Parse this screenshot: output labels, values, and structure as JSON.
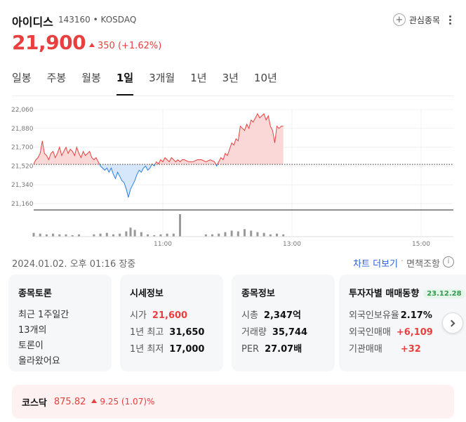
{
  "header": {
    "name": "아이디스",
    "code_market": "143160 • KOSDAQ",
    "interest_label": "관심종목",
    "icons": {
      "interest": "plus-circle-icon",
      "more": "more-vertical-icon"
    }
  },
  "quote": {
    "price": "21,900",
    "change": "350 (+1.62%)",
    "up_color": "#e8403f",
    "down_color": "#2b7de9"
  },
  "tabs": [
    "일봉",
    "주봉",
    "월봉",
    "1일",
    "3개월",
    "1년",
    "3년",
    "10년"
  ],
  "active_tab": "1일",
  "chart_data": {
    "type": "line",
    "title": "",
    "baseline": 21535,
    "ylim": [
      21160,
      22060
    ],
    "y_ticks": [
      "22,060",
      "21,880",
      "21,700",
      "21,520",
      "21,340",
      "21,160"
    ],
    "x_ticks": [
      "11:00",
      "13:00",
      "15:00"
    ],
    "x_range_minutes": [
      540,
      930
    ],
    "price_series": [
      [
        540,
        21540
      ],
      [
        542,
        21580
      ],
      [
        544,
        21600
      ],
      [
        546,
        21640
      ],
      [
        547,
        21700
      ],
      [
        548,
        21760
      ],
      [
        549,
        21700
      ],
      [
        550,
        21640
      ],
      [
        552,
        21620
      ],
      [
        554,
        21580
      ],
      [
        556,
        21640
      ],
      [
        558,
        21660
      ],
      [
        560,
        21600
      ],
      [
        562,
        21640
      ],
      [
        564,
        21700
      ],
      [
        566,
        21620
      ],
      [
        568,
        21660
      ],
      [
        570,
        21700
      ],
      [
        572,
        21640
      ],
      [
        574,
        21680
      ],
      [
        576,
        21660
      ],
      [
        578,
        21620
      ],
      [
        580,
        21700
      ],
      [
        582,
        21640
      ],
      [
        584,
        21600
      ],
      [
        586,
        21660
      ],
      [
        588,
        21620
      ],
      [
        590,
        21640
      ],
      [
        592,
        21660
      ],
      [
        594,
        21600
      ],
      [
        596,
        21580
      ],
      [
        598,
        21600
      ],
      [
        600,
        21560
      ],
      [
        602,
        21520
      ],
      [
        604,
        21500
      ],
      [
        606,
        21480
      ],
      [
        608,
        21500
      ],
      [
        610,
        21460
      ],
      [
        612,
        21500
      ],
      [
        614,
        21440
      ],
      [
        616,
        21400
      ],
      [
        618,
        21460
      ],
      [
        620,
        21420
      ],
      [
        622,
        21380
      ],
      [
        624,
        21360
      ],
      [
        626,
        21300
      ],
      [
        628,
        21220
      ],
      [
        630,
        21300
      ],
      [
        632,
        21340
      ],
      [
        634,
        21380
      ],
      [
        636,
        21440
      ],
      [
        638,
        21480
      ],
      [
        640,
        21460
      ],
      [
        642,
        21500
      ],
      [
        644,
        21520
      ],
      [
        646,
        21480
      ],
      [
        648,
        21500
      ],
      [
        650,
        21540
      ],
      [
        652,
        21520
      ],
      [
        654,
        21560
      ],
      [
        656,
        21540
      ],
      [
        658,
        21580
      ],
      [
        660,
        21560
      ],
      [
        662,
        21600
      ],
      [
        664,
        21580
      ],
      [
        666,
        21560
      ],
      [
        668,
        21600
      ],
      [
        670,
        21580
      ],
      [
        672,
        21560
      ],
      [
        674,
        21580
      ],
      [
        676,
        21560
      ],
      [
        678,
        21580
      ],
      [
        680,
        21580
      ],
      [
        684,
        21560
      ],
      [
        688,
        21560
      ],
      [
        692,
        21580
      ],
      [
        696,
        21580
      ],
      [
        700,
        21560
      ],
      [
        704,
        21580
      ],
      [
        708,
        21560
      ],
      [
        710,
        21520
      ],
      [
        712,
        21560
      ],
      [
        714,
        21600
      ],
      [
        716,
        21580
      ],
      [
        718,
        21640
      ],
      [
        720,
        21620
      ],
      [
        722,
        21680
      ],
      [
        724,
        21740
      ],
      [
        726,
        21720
      ],
      [
        728,
        21780
      ],
      [
        730,
        21760
      ],
      [
        732,
        21900
      ],
      [
        734,
        21880
      ],
      [
        736,
        21860
      ],
      [
        738,
        21920
      ],
      [
        740,
        21880
      ],
      [
        742,
        21960
      ],
      [
        744,
        21940
      ],
      [
        746,
        21980
      ],
      [
        748,
        22020
      ],
      [
        750,
        21980
      ],
      [
        752,
        22000
      ],
      [
        754,
        22020
      ],
      [
        756,
        21960
      ],
      [
        758,
        22000
      ],
      [
        760,
        21900
      ],
      [
        762,
        21860
      ],
      [
        764,
        21740
      ],
      [
        766,
        21900
      ],
      [
        768,
        21880
      ],
      [
        770,
        21900
      ],
      [
        772,
        21900
      ]
    ],
    "volume_ticks_minutes": [
      540,
      546,
      552,
      558,
      564,
      570,
      576,
      582,
      596,
      602,
      608,
      614,
      620,
      626,
      630,
      634,
      640,
      646,
      652,
      658,
      664,
      670,
      676,
      700,
      706,
      712,
      718,
      724,
      730,
      736,
      742,
      748,
      754,
      760,
      766,
      772
    ],
    "volume_values": [
      5,
      4,
      3,
      4,
      3,
      3,
      2,
      3,
      3,
      4,
      5,
      3,
      4,
      7,
      12,
      9,
      6,
      3,
      2,
      3,
      4,
      4,
      30,
      3,
      3,
      4,
      6,
      8,
      7,
      10,
      8,
      6,
      5,
      3,
      4,
      3
    ]
  },
  "info_bar": {
    "datetime": "2024.01.02. 오후 01:16 장중",
    "more_chart": "차트 더보기",
    "disclaimer": "면책조항",
    "info_icon_glyph": "i"
  },
  "cards": {
    "discussion": {
      "title": "종목토론",
      "lines": [
        "최근 1주일간",
        "13개의",
        "토론이",
        "올라왔어요"
      ]
    },
    "market": {
      "title": "시세정보",
      "rows": [
        {
          "k": "시가",
          "v": "21,600"
        },
        {
          "k": "1년 최고",
          "v": "31,650"
        },
        {
          "k": "1년 최저",
          "v": "17,000"
        }
      ]
    },
    "stock": {
      "title": "종목정보",
      "rows": [
        {
          "k": "시총",
          "v": "2,347억"
        },
        {
          "k": "거래량",
          "v": "35,744"
        },
        {
          "k": "PER",
          "v": "27.07배"
        }
      ]
    },
    "investor": {
      "title": "투자자별 매매동향",
      "badge": "23.12.28",
      "rows": [
        {
          "k": "외국인보유율",
          "v": "2.17%"
        },
        {
          "k": "외국인매매",
          "v": "+6,109"
        },
        {
          "k": "기관매매",
          "v": "+32"
        }
      ]
    }
  },
  "index_bar": {
    "name": "코스닥",
    "value": "875.82",
    "change": "9.25 (1.07)%"
  }
}
